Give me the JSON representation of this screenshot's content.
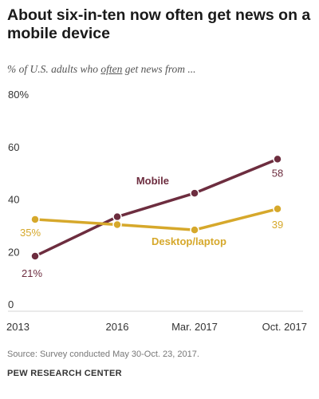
{
  "chart_data": {
    "type": "line",
    "title": "About six-in-ten now often get news on a mobile device",
    "subtitle": {
      "prefix": "% of U.S. adults who ",
      "emphasis": "often",
      "suffix": " get news from ..."
    },
    "categories": [
      "2013",
      "2016",
      "Mar. 2017",
      "Oct. 2017"
    ],
    "ylim": [
      0,
      80
    ],
    "yticks": [
      0,
      20,
      40,
      60,
      80
    ],
    "ytick_labels": [
      "0",
      "20",
      "40",
      "60",
      "80%"
    ],
    "grid": false,
    "series": [
      {
        "name": "Mobile",
        "values": [
          21,
          36,
          45,
          58
        ],
        "color": "#6d2d3f",
        "point_labels": [
          "21%",
          "",
          "",
          "58"
        ]
      },
      {
        "name": "Desktop/laptop",
        "values": [
          35,
          33,
          31,
          39
        ],
        "color": "#d6a82b",
        "point_labels": [
          "35%",
          "",
          "",
          "39"
        ]
      }
    ]
  },
  "source": "Source: Survey conducted May 30-Oct. 23, 2017.",
  "organization": "PEW RESEARCH CENTER"
}
